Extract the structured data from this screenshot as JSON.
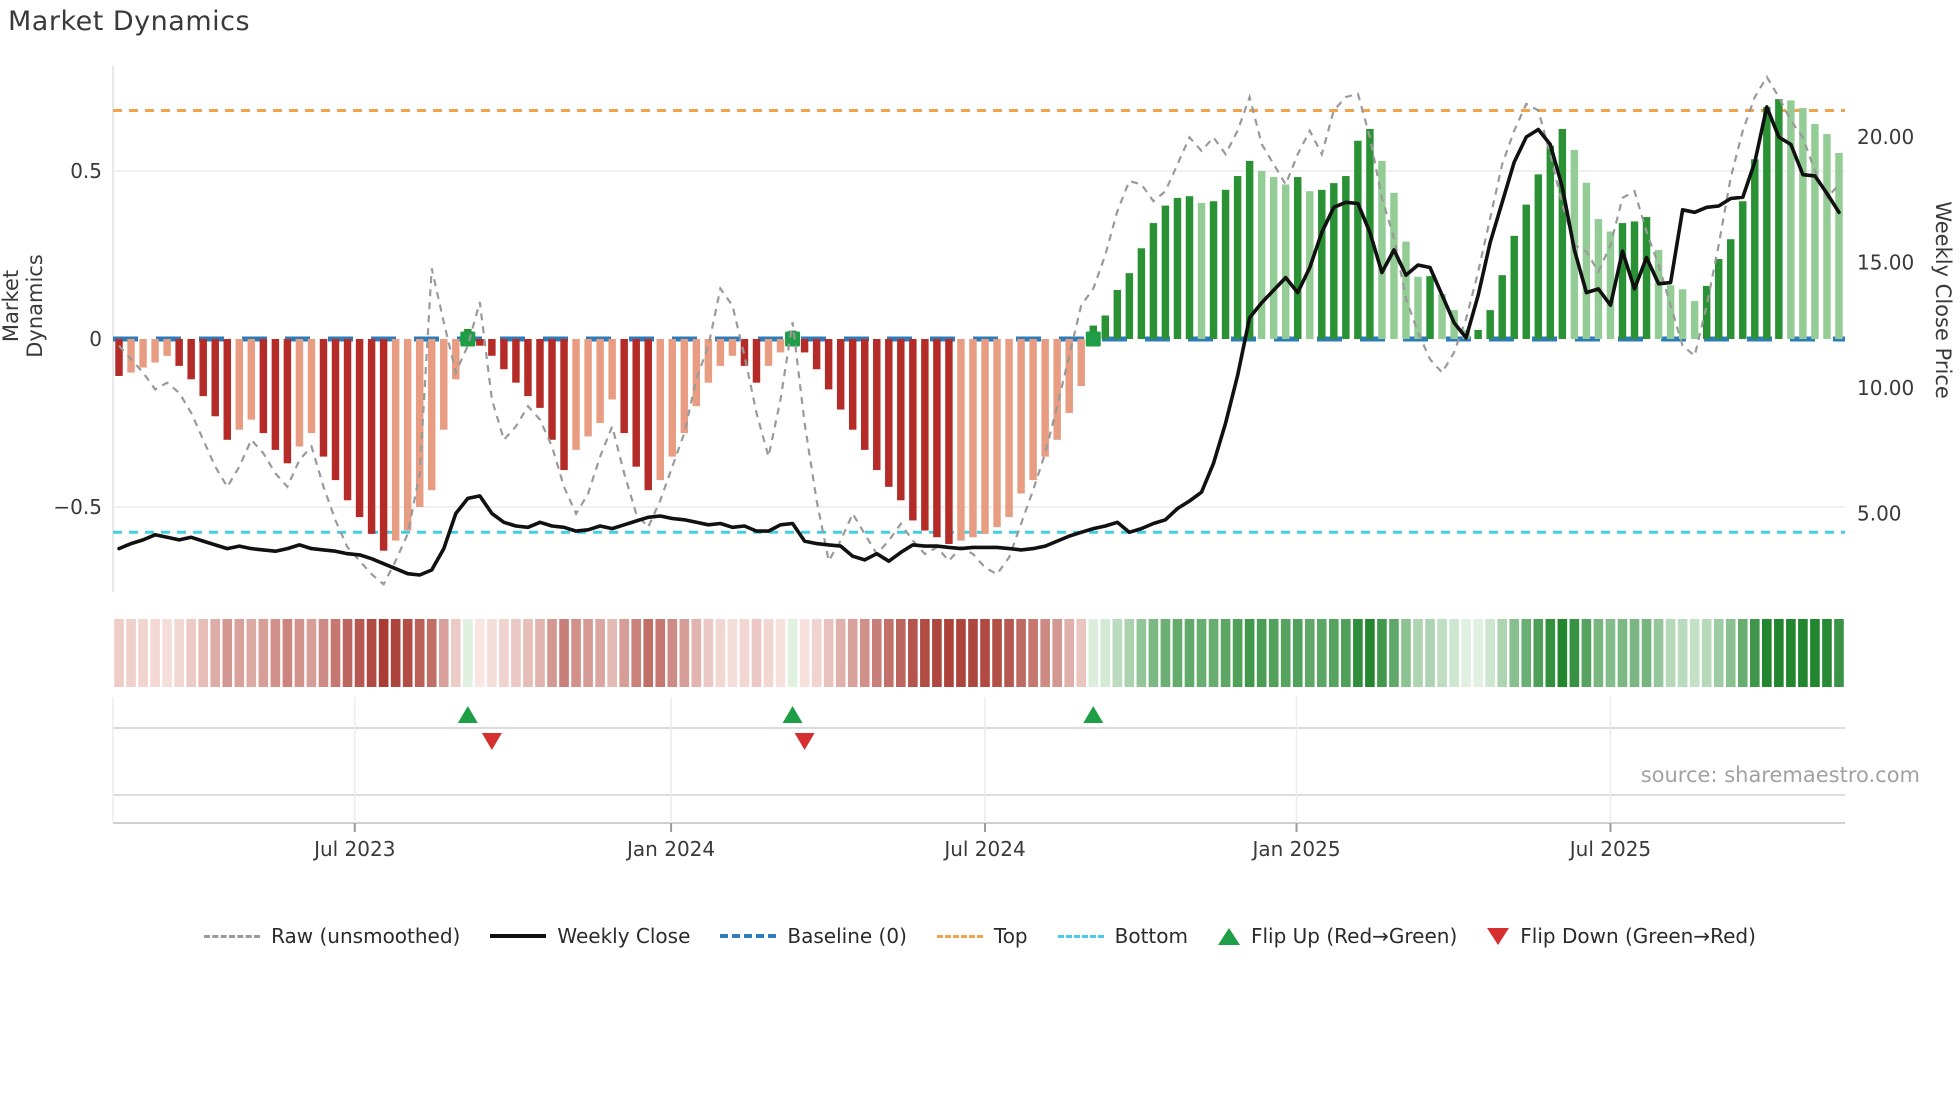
{
  "title": "Market Dynamics",
  "source_note": "source: sharemaestro.com",
  "legend": {
    "items": [
      {
        "label": "Raw (unsmoothed)",
        "swatch": "raw-dashed-line"
      },
      {
        "label": "Weekly Close",
        "swatch": "close-solid-line"
      },
      {
        "label": "Baseline (0)",
        "swatch": "baseline-dashed-line"
      },
      {
        "label": "Top",
        "swatch": "top-dotted-line"
      },
      {
        "label": "Bottom",
        "swatch": "bottom-dotted-line"
      },
      {
        "label": "Flip Up (Red→Green)",
        "swatch": "flip-up-triangle"
      },
      {
        "label": "Flip Down (Green→Red)",
        "swatch": "flip-down-triangle"
      }
    ]
  },
  "chart_data": {
    "type": "bar",
    "subtype": "weekly-oscillator-with-price-line-heatmap-and-flip-markers",
    "title": "Market Dynamics",
    "xlabel": "",
    "ylabel_left": "Market Dynamics",
    "ylabel_right": "Weekly Close Price",
    "x_ticks": [
      {
        "label": "Jul 2023",
        "week": 20.1
      },
      {
        "label": "Jan 2024",
        "week": 46.4
      },
      {
        "label": "Jul 2024",
        "week": 72.5
      },
      {
        "label": "Jan 2025",
        "week": 98.4
      },
      {
        "label": "Jul 2025",
        "week": 124.5
      }
    ],
    "y_left_ticks": [
      {
        "label": "0.5",
        "v": 0.5
      },
      {
        "label": "0",
        "v": 0
      },
      {
        "label": "−0.5",
        "v": -0.5
      }
    ],
    "y_right_ticks": [
      {
        "label": "20.00",
        "p": 20
      },
      {
        "label": "15.00",
        "p": 15
      },
      {
        "label": "10.00",
        "p": 10
      },
      {
        "label": "5.00",
        "p": 5
      }
    ],
    "ylim_left": [
      -0.75,
      0.82
    ],
    "baseline": 0,
    "top_level": 0.68,
    "bottom_level": -0.575,
    "grid_v": [
      0.5,
      -0.5
    ],
    "legend_position": "bottom",
    "osc": [
      -0.11,
      -0.1,
      -0.085,
      -0.07,
      -0.05,
      -0.08,
      -0.12,
      -0.17,
      -0.23,
      -0.3,
      -0.27,
      -0.24,
      -0.28,
      -0.33,
      -0.37,
      -0.32,
      -0.28,
      -0.35,
      -0.42,
      -0.48,
      -0.53,
      -0.58,
      -0.63,
      -0.6,
      -0.57,
      -0.5,
      -0.45,
      -0.27,
      -0.12,
      0.03,
      -0.02,
      -0.05,
      -0.09,
      -0.13,
      -0.17,
      -0.205,
      -0.3,
      -0.39,
      -0.33,
      -0.29,
      -0.25,
      -0.18,
      -0.28,
      -0.38,
      -0.45,
      -0.42,
      -0.35,
      -0.28,
      -0.2,
      -0.13,
      -0.08,
      -0.05,
      -0.08,
      -0.13,
      -0.08,
      -0.04,
      0.025,
      -0.04,
      -0.09,
      -0.15,
      -0.21,
      -0.27,
      -0.33,
      -0.39,
      -0.44,
      -0.48,
      -0.54,
      -0.57,
      -0.59,
      -0.61,
      -0.6,
      -0.59,
      -0.58,
      -0.56,
      -0.53,
      -0.46,
      -0.42,
      -0.35,
      -0.3,
      -0.22,
      -0.14,
      0.04,
      0.07,
      0.146,
      0.196,
      0.27,
      0.345,
      0.397,
      0.42,
      0.425,
      0.405,
      0.41,
      0.444,
      0.485,
      0.53,
      0.5,
      0.482,
      0.46,
      0.482,
      0.44,
      0.444,
      0.464,
      0.485,
      0.59,
      0.625,
      0.53,
      0.435,
      0.29,
      0.185,
      0.187,
      0.134,
      0.086,
      0.027,
      0.027,
      0.086,
      0.19,
      0.307,
      0.4,
      0.49,
      0.575,
      0.625,
      0.5625,
      0.465,
      0.357,
      0.32,
      0.345,
      0.35,
      0.363,
      0.265,
      0.16,
      0.148,
      0.113,
      0.158,
      0.238,
      0.297,
      0.41,
      0.535,
      0.69,
      0.714,
      0.71,
      0.6875,
      0.64,
      0.61,
      0.5536
    ],
    "raw": [
      -0.02,
      -0.06,
      -0.1,
      -0.15,
      -0.13,
      -0.16,
      -0.22,
      -0.3,
      -0.38,
      -0.44,
      -0.38,
      -0.3,
      -0.34,
      -0.4,
      -0.44,
      -0.36,
      -0.32,
      -0.44,
      -0.54,
      -0.62,
      -0.66,
      -0.7,
      -0.73,
      -0.66,
      -0.58,
      -0.4,
      0.21,
      0.05,
      -0.1,
      -0.02,
      0.11,
      -0.18,
      -0.3,
      -0.26,
      -0.2,
      -0.24,
      -0.32,
      -0.44,
      -0.52,
      -0.46,
      -0.35,
      -0.26,
      -0.4,
      -0.52,
      -0.56,
      -0.48,
      -0.38,
      -0.28,
      -0.12,
      -0.02,
      0.15,
      0.1,
      -0.05,
      -0.22,
      -0.35,
      -0.18,
      0.05,
      -0.25,
      -0.48,
      -0.66,
      -0.6,
      -0.52,
      -0.58,
      -0.64,
      -0.6,
      -0.55,
      -0.6,
      -0.64,
      -0.62,
      -0.66,
      -0.62,
      -0.64,
      -0.68,
      -0.7,
      -0.65,
      -0.55,
      -0.45,
      -0.34,
      -0.2,
      -0.05,
      0.1,
      0.15,
      0.25,
      0.38,
      0.47,
      0.46,
      0.41,
      0.44,
      0.52,
      0.6,
      0.56,
      0.6,
      0.55,
      0.62,
      0.72,
      0.58,
      0.52,
      0.46,
      0.55,
      0.62,
      0.55,
      0.68,
      0.72,
      0.73,
      0.6,
      0.42,
      0.3,
      0.12,
      0.02,
      -0.06,
      -0.1,
      -0.04,
      0.06,
      0.2,
      0.36,
      0.52,
      0.62,
      0.7,
      0.68,
      0.55,
      0.4,
      0.28,
      0.26,
      0.2,
      0.28,
      0.42,
      0.44,
      0.32,
      0.22,
      0.1,
      -0.02,
      -0.05,
      0.1,
      0.28,
      0.48,
      0.62,
      0.72,
      0.78,
      0.72,
      0.65,
      0.6,
      0.5,
      0.42,
      0.46
    ],
    "close": [
      3.6,
      3.8,
      3.95,
      4.15,
      4.05,
      3.95,
      4.05,
      3.9,
      3.75,
      3.6,
      3.7,
      3.6,
      3.55,
      3.5,
      3.6,
      3.75,
      3.6,
      3.55,
      3.5,
      3.4,
      3.35,
      3.2,
      3.0,
      2.8,
      2.6,
      2.55,
      2.75,
      3.6,
      5.0,
      5.6,
      5.7,
      5.0,
      4.65,
      4.5,
      4.45,
      4.65,
      4.5,
      4.45,
      4.3,
      4.35,
      4.5,
      4.4,
      4.55,
      4.7,
      4.85,
      4.9,
      4.8,
      4.75,
      4.65,
      4.55,
      4.6,
      4.45,
      4.5,
      4.3,
      4.3,
      4.55,
      4.6,
      3.9,
      3.8,
      3.75,
      3.7,
      3.3,
      3.15,
      3.4,
      3.1,
      3.45,
      3.75,
      3.7,
      3.7,
      3.65,
      3.6,
      3.65,
      3.65,
      3.65,
      3.6,
      3.55,
      3.6,
      3.7,
      3.9,
      4.1,
      4.25,
      4.4,
      4.5,
      4.65,
      4.25,
      4.4,
      4.6,
      4.75,
      5.2,
      5.5,
      5.85,
      7.0,
      8.6,
      10.5,
      12.8,
      13.4,
      13.9,
      14.4,
      13.8,
      14.8,
      16.2,
      17.2,
      17.4,
      17.35,
      16.2,
      14.6,
      15.5,
      14.5,
      14.9,
      14.8,
      13.7,
      12.6,
      12.0,
      13.7,
      15.8,
      17.4,
      19.0,
      20.0,
      20.3,
      19.7,
      18.0,
      15.5,
      13.8,
      13.95,
      13.3,
      15.45,
      13.95,
      15.2,
      14.15,
      14.2,
      17.1,
      17.0,
      17.2,
      17.25,
      17.55,
      17.6,
      19.0,
      21.2,
      20.0,
      19.7,
      18.5,
      18.45,
      17.75,
      17.0
    ],
    "flip_up_weeks": [
      29,
      56,
      81
    ],
    "flip_down_weeks": [
      31,
      57
    ],
    "heatmap_strip": "one cell per week, red gradient for negative oscillator, green gradient for positive, intensity = |value|",
    "colors": {
      "bar_neg_strong": "#b42b27",
      "bar_neg_weak": "#e89d82",
      "bar_pos_strong": "#2a9235",
      "bar_pos_weak": "#94cc95",
      "raw_line": "#9a9a9a",
      "close_line": "#111111",
      "baseline": "#2d7bb8",
      "top_line": "#f2a44c",
      "bottom_line": "#45cde4",
      "flip_up_marker": "#1e9e46",
      "flip_down_marker": "#d62f2f",
      "grid": "#ececec",
      "axis_text": "#3a3a3a"
    }
  }
}
